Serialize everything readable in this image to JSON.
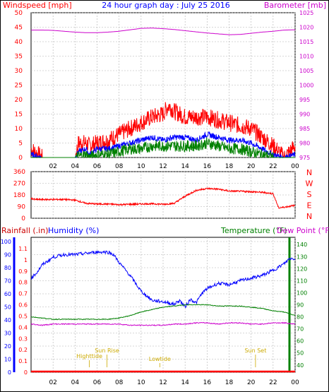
{
  "page": {
    "title": "24 hour graph day : July 25 2016",
    "background": "#ffffff",
    "frame_color": "#000000"
  },
  "colors": {
    "red": "#ff0000",
    "blue": "#0000ff",
    "green": "#008000",
    "magenta": "#cc00cc",
    "gold": "#ccaa00",
    "dark_red": "#cc0000",
    "grid": "#b0b0b0"
  },
  "x_axis": {
    "hour_labels": [
      "02",
      "04",
      "06",
      "08",
      "10",
      "12",
      "14",
      "16",
      "18",
      "20",
      "22",
      "00"
    ],
    "hour_values": [
      2,
      4,
      6,
      8,
      10,
      12,
      14,
      16,
      18,
      20,
      22,
      24
    ],
    "range": [
      0,
      24
    ]
  },
  "chart_data": [
    {
      "id": "wind_baro",
      "type": "line",
      "left_label": "Windspeed [mph]",
      "right_label": "Barometer [mb]",
      "left_ticks": [
        "0",
        "5",
        "10",
        "15",
        "20",
        "25",
        "30",
        "35",
        "40",
        "45",
        "50"
      ],
      "left_range": [
        0,
        50
      ],
      "right_ticks": [
        "975",
        "980",
        "985",
        "990",
        "995",
        "1000",
        "1005",
        "1010",
        "1015",
        "1020",
        "1025"
      ],
      "right_range": [
        975,
        1025
      ],
      "series": [
        {
          "key": "gust",
          "axis": "left",
          "x": [
            0,
            1,
            2,
            3,
            4,
            4.3,
            5,
            5.3,
            6,
            7,
            8,
            9,
            10,
            11,
            12,
            12.5,
            13,
            14,
            15,
            16,
            17,
            18,
            19,
            20,
            21,
            22,
            23,
            24
          ],
          "values": [
            3,
            0,
            0,
            0,
            0,
            5,
            5,
            4,
            5,
            6,
            8,
            10,
            12,
            14,
            15,
            18,
            16,
            14,
            14,
            14,
            13,
            12,
            11,
            10,
            7,
            4,
            0,
            4
          ]
        },
        {
          "key": "avg",
          "axis": "left",
          "x": [
            0,
            1,
            2,
            3,
            4,
            4.3,
            5,
            5.3,
            6,
            7,
            8,
            9,
            10,
            11,
            12,
            13,
            14,
            15,
            16,
            17,
            18,
            19,
            20,
            21,
            22,
            23,
            24
          ],
          "values": [
            1,
            0,
            0,
            0,
            0,
            2,
            3,
            1,
            3,
            3,
            4,
            5,
            6,
            7,
            6,
            7,
            7,
            6,
            8,
            7,
            6,
            6,
            5,
            3,
            1,
            0,
            1
          ]
        },
        {
          "key": "dir_speed",
          "axis": "left",
          "x": [
            0,
            1,
            2,
            3,
            4,
            5,
            5.3,
            6,
            7,
            8,
            9,
            10,
            11,
            12,
            13,
            14,
            15,
            16,
            17,
            18,
            19,
            20,
            21,
            22,
            23,
            24
          ],
          "values": [
            0,
            0,
            0,
            0,
            0,
            1,
            0,
            1,
            1,
            2,
            3,
            3,
            4,
            4,
            4,
            4,
            4,
            5,
            4,
            3,
            3,
            2,
            1,
            0,
            0,
            0
          ]
        },
        {
          "key": "barometer",
          "axis": "right",
          "x": [
            0,
            1,
            2,
            3,
            4,
            5,
            6,
            7,
            8,
            9,
            10,
            11,
            12,
            13,
            14,
            15,
            16,
            17,
            18,
            19,
            20,
            21,
            22,
            23,
            24
          ],
          "values": [
            1019,
            1019,
            1018.9,
            1018.6,
            1018.3,
            1018.1,
            1018.1,
            1018.3,
            1018.6,
            1019.1,
            1019.6,
            1019.7,
            1019.5,
            1019.2,
            1018.8,
            1018.4,
            1018,
            1017.7,
            1017.4,
            1017.5,
            1017.9,
            1018.3,
            1018.6,
            1019,
            1019.1
          ]
        }
      ]
    },
    {
      "id": "wind_dir",
      "type": "line",
      "left_ticks": [
        "0",
        "90",
        "180",
        "270",
        "360"
      ],
      "left_range": [
        0,
        360
      ],
      "right_labels": [
        "N",
        "W",
        "S",
        "E",
        "N"
      ],
      "series": [
        {
          "key": "direction",
          "x": [
            0,
            0.3,
            1,
            2,
            3,
            4,
            5,
            6,
            7,
            8,
            9,
            10,
            11,
            12,
            13,
            14,
            15,
            16,
            17,
            18,
            19,
            20,
            21,
            22,
            22.5,
            23,
            24
          ],
          "values": [
            155,
            145,
            145,
            145,
            145,
            140,
            115,
            110,
            110,
            105,
            108,
            110,
            112,
            108,
            115,
            170,
            215,
            230,
            225,
            210,
            208,
            205,
            200,
            190,
            80,
            85,
            100
          ]
        }
      ]
    },
    {
      "id": "temp_hum",
      "type": "line",
      "labels": [
        "Rainfall (.in)",
        "Humidity (%)",
        "Temperature (°F)",
        "Dew Point (°F)"
      ],
      "rain_ticks": [
        "0",
        "0.1",
        "0.2",
        "0.3",
        "0.4",
        "0.5",
        "0.6",
        "0.7",
        "0.8",
        "0.9",
        "1",
        "1.1"
      ],
      "rain_range": [
        0,
        1.2
      ],
      "hum_ticks": [
        "0",
        "10",
        "20",
        "30",
        "40",
        "50",
        "60",
        "70",
        "80",
        "90",
        "100"
      ],
      "hum_range": [
        0,
        100
      ],
      "temp_ticks": [
        "40",
        "50",
        "60",
        "70",
        "80",
        "90",
        "100",
        "110",
        "120",
        "130",
        "140"
      ],
      "temp_range": [
        34,
        146
      ],
      "series": [
        {
          "key": "humidity",
          "axis": "hum",
          "x": [
            0,
            0.5,
            1,
            1.5,
            2,
            3,
            4,
            5,
            6,
            7,
            7.5,
            8,
            9,
            10,
            11,
            12,
            13,
            13.5,
            14,
            14.5,
            15,
            15.5,
            16,
            17,
            18,
            19,
            20,
            21,
            22,
            23,
            23.5,
            24
          ],
          "values": [
            72,
            76,
            82,
            85,
            88,
            90,
            90,
            91,
            92,
            92,
            90,
            84,
            74,
            62,
            55,
            54,
            52,
            55,
            50,
            56,
            53,
            60,
            64,
            68,
            67,
            70,
            72,
            74,
            78,
            83,
            87,
            87
          ]
        },
        {
          "key": "temperature",
          "axis": "temp",
          "x": [
            0,
            1,
            2,
            3,
            4,
            5,
            6,
            7,
            8,
            9,
            10,
            11,
            12,
            13,
            14,
            15,
            16,
            17,
            18,
            19,
            20,
            21,
            22,
            23,
            24
          ],
          "values": [
            80,
            79,
            78,
            78,
            78,
            78,
            78,
            78,
            79,
            81,
            84,
            86,
            88,
            89,
            90,
            90,
            90,
            89,
            89,
            89,
            88,
            87,
            85,
            84,
            81
          ]
        },
        {
          "key": "dewpoint",
          "axis": "temp",
          "x": [
            0,
            1,
            2,
            3,
            4,
            5,
            6,
            7,
            8,
            9,
            10,
            11,
            12,
            13,
            14,
            15,
            16,
            17,
            18,
            19,
            20,
            21,
            22,
            23,
            24
          ],
          "values": [
            74,
            73,
            74,
            74,
            74,
            74,
            74,
            74,
            74,
            73,
            73,
            73,
            73,
            74,
            74,
            75,
            75,
            74,
            75,
            75,
            74,
            74,
            75,
            75,
            74
          ]
        },
        {
          "key": "rain",
          "axis": "rain",
          "x": [
            0,
            24
          ],
          "values": [
            0,
            0
          ]
        }
      ],
      "annotations": [
        {
          "text": "Highttide",
          "x": 5.3,
          "row": 0
        },
        {
          "text": "Sun Rise",
          "x": 6.9,
          "row": 1
        },
        {
          "text": "Lowtide",
          "x": 11.7,
          "row": 2
        },
        {
          "text": "Sun Set",
          "x": 20.4,
          "row": 1
        }
      ]
    }
  ]
}
